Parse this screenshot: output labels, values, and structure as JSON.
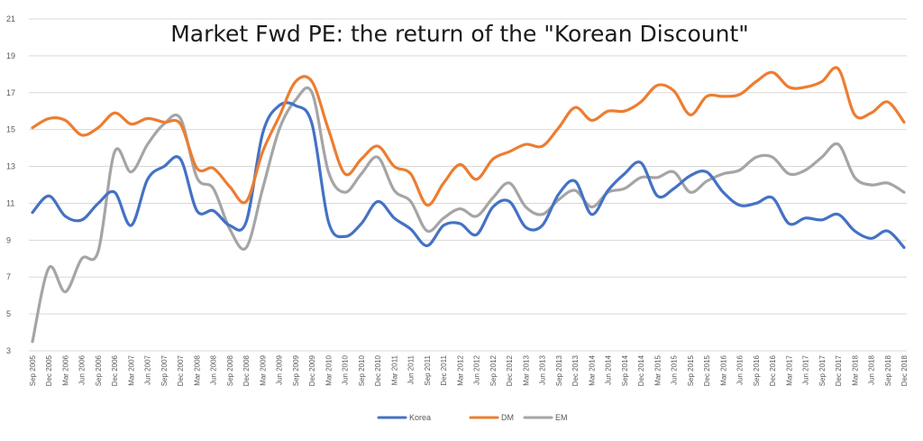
{
  "chart_data": {
    "type": "line",
    "title": "Market Fwd PE: the return of the \"Korean Discount\"",
    "xlabel": "",
    "ylabel": "",
    "ylim": [
      3,
      21
    ],
    "yticks": [
      3,
      5,
      7,
      9,
      11,
      13,
      15,
      17,
      19,
      21
    ],
    "grid": true,
    "legend_position": "bottom",
    "x": [
      "Sep 2005",
      "Dec 2005",
      "Mar 2006",
      "Jun 2006",
      "Sep 2006",
      "Dec 2006",
      "Mar 2007",
      "Jun 2007",
      "Sep 2007",
      "Dec 2007",
      "Mar 2008",
      "Jun 2008",
      "Sep 2008",
      "Dec 2008",
      "Mar 2009",
      "Jun 2009",
      "Sep 2009",
      "Dec 2009",
      "Mar 2010",
      "Jun 2010",
      "Sep 2010",
      "Dec 2010",
      "Mar 2011",
      "Jun 2011",
      "Sep 2011",
      "Dec 2011",
      "Mar 2012",
      "Jun 2012",
      "Sep 2012",
      "Dec 2012",
      "Mar 2013",
      "Jun 2013",
      "Sep 2013",
      "Dec 2013",
      "Mar 2014",
      "Jun 2014",
      "Sep 2014",
      "Dec 2014",
      "Mar 2015",
      "Jun 2015",
      "Sep 2015",
      "Dec 2015",
      "Mar 2016",
      "Jun 2016",
      "Sep 2016",
      "Dec 2016",
      "Mar 2017",
      "Jun 2017",
      "Sep 2017",
      "Dec 2017",
      "Mar 2018",
      "Jun 2018",
      "Sep 2018",
      "Dec 2018"
    ],
    "series": [
      {
        "name": "Korea",
        "color": "#4472c4",
        "values": [
          10.5,
          11.4,
          10.3,
          10.1,
          11.0,
          11.6,
          9.8,
          12.3,
          13.0,
          13.4,
          10.6,
          10.6,
          9.8,
          10.0,
          14.8,
          16.3,
          16.3,
          15.3,
          10.0,
          9.2,
          9.9,
          11.1,
          10.2,
          9.6,
          8.7,
          9.8,
          9.9,
          9.3,
          10.8,
          11.1,
          9.7,
          9.8,
          11.5,
          12.2,
          10.4,
          11.7,
          12.6,
          13.2,
          11.4,
          11.8,
          12.5,
          12.7,
          11.6,
          10.9,
          11.0,
          11.3,
          9.9,
          10.2,
          10.1,
          10.4,
          9.5,
          9.1,
          9.5,
          8.6
        ]
      },
      {
        "name": "DM",
        "color": "#ed7d31",
        "values": [
          15.1,
          15.6,
          15.5,
          14.7,
          15.1,
          15.9,
          15.3,
          15.6,
          15.4,
          15.3,
          12.9,
          12.9,
          11.9,
          11.1,
          13.8,
          15.7,
          17.6,
          17.6,
          15.0,
          12.6,
          13.4,
          14.1,
          13.0,
          12.6,
          10.9,
          12.1,
          13.1,
          12.3,
          13.4,
          13.8,
          14.2,
          14.1,
          15.1,
          16.2,
          15.5,
          16.0,
          16.0,
          16.5,
          17.4,
          17.1,
          15.8,
          16.8,
          16.8,
          16.9,
          17.6,
          18.1,
          17.3,
          17.3,
          17.6,
          18.3,
          15.8,
          15.9,
          16.5,
          15.4
        ]
      },
      {
        "name": "EM",
        "color": "#a5a5a5",
        "values": [
          3.5,
          7.5,
          6.2,
          8.0,
          8.4,
          13.8,
          12.7,
          14.2,
          15.3,
          15.6,
          12.4,
          11.8,
          9.6,
          8.6,
          11.8,
          15.0,
          16.6,
          17.0,
          12.7,
          11.6,
          12.6,
          13.5,
          11.7,
          11.1,
          9.5,
          10.2,
          10.7,
          10.3,
          11.3,
          12.1,
          10.8,
          10.4,
          11.2,
          11.7,
          10.8,
          11.6,
          11.8,
          12.4,
          12.4,
          12.7,
          11.6,
          12.2,
          12.6,
          12.8,
          13.5,
          13.5,
          12.6,
          12.8,
          13.5,
          14.2,
          12.4,
          12.0,
          12.1,
          11.6
        ]
      }
    ]
  }
}
